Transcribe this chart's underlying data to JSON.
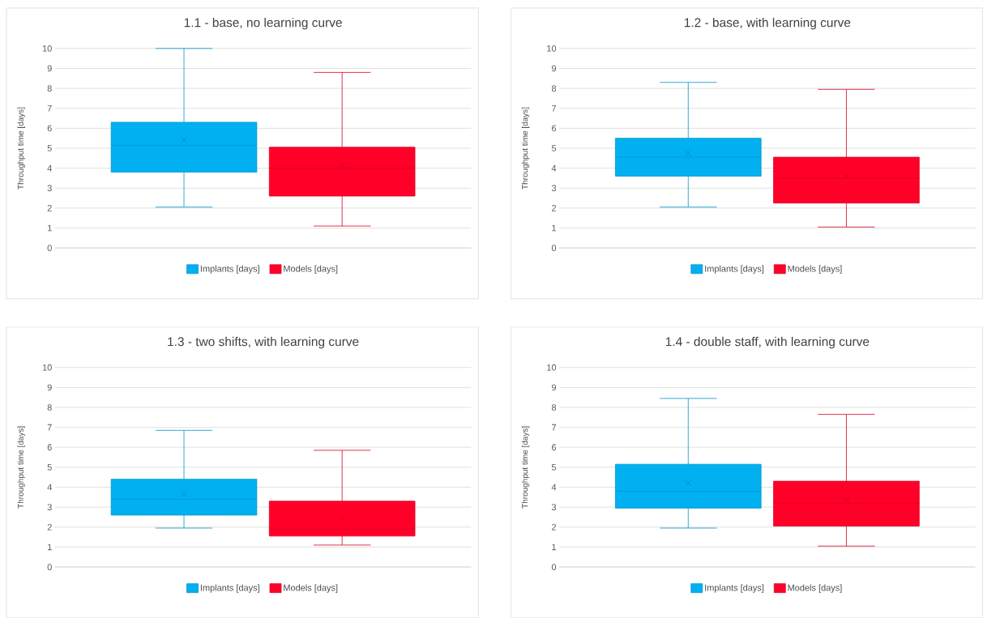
{
  "chart_data": [
    {
      "type": "box",
      "title": "1.1 - base, no learning curve",
      "ylabel": "Throughput time [days]",
      "categories": [
        null
      ],
      "ylim": [
        0,
        10
      ],
      "yticks": [
        0,
        1,
        2,
        3,
        4,
        5,
        6,
        7,
        8,
        9,
        10
      ],
      "grid": "y",
      "legend": "bottom",
      "series": [
        {
          "name": "Implants [days]",
          "color": "#00b0f0",
          "boxes": [
            {
              "low": 2.05,
              "q1": 3.8,
              "median": 5.15,
              "q3": 6.3,
              "high": 10,
              "mean": 5.4
            }
          ]
        },
        {
          "name": "Models [days]",
          "color": "#ff0029",
          "boxes": [
            {
              "low": 1.1,
              "q1": 2.6,
              "median": 4.0,
              "q3": 5.05,
              "high": 8.8,
              "mean": 4.15
            }
          ]
        }
      ]
    },
    {
      "type": "box",
      "title": "1.2 - base, with learning curve",
      "ylabel": "Throughput time [days]",
      "categories": [
        null
      ],
      "ylim": [
        0,
        10
      ],
      "yticks": [
        0,
        1,
        2,
        3,
        4,
        5,
        6,
        7,
        8,
        9,
        10
      ],
      "grid": "y",
      "legend": "bottom",
      "series": [
        {
          "name": "Implants [days]",
          "color": "#00b0f0",
          "boxes": [
            {
              "low": 2.05,
              "q1": 3.6,
              "median": 4.55,
              "q3": 5.5,
              "high": 8.3,
              "mean": 4.75
            }
          ]
        },
        {
          "name": "Models [days]",
          "color": "#ff0029",
          "boxes": [
            {
              "low": 1.05,
              "q1": 2.25,
              "median": 3.5,
              "q3": 4.55,
              "high": 7.95,
              "mean": 3.6
            }
          ]
        }
      ]
    },
    {
      "type": "box",
      "title": "1.3 - two shifts, with learning curve",
      "ylabel": "Throughput time [days]",
      "categories": [
        null
      ],
      "ylim": [
        0,
        10
      ],
      "yticks": [
        0,
        1,
        2,
        3,
        4,
        5,
        6,
        7,
        8,
        9,
        10
      ],
      "grid": "y",
      "legend": "bottom",
      "series": [
        {
          "name": "Implants [days]",
          "color": "#00b0f0",
          "boxes": [
            {
              "low": 1.95,
              "q1": 2.6,
              "median": 3.4,
              "q3": 4.4,
              "high": 6.85,
              "mean": 3.65
            }
          ]
        },
        {
          "name": "Models [days]",
          "color": "#ff0029",
          "boxes": [
            {
              "low": 1.1,
              "q1": 1.55,
              "median": 1.9,
              "q3": 3.3,
              "high": 5.85,
              "mean": 2.45
            }
          ]
        }
      ]
    },
    {
      "type": "box",
      "title": "1.4 - double staff, with learning curve",
      "ylabel": "Throughput time [days]",
      "categories": [
        null
      ],
      "ylim": [
        0,
        10
      ],
      "yticks": [
        0,
        1,
        2,
        3,
        4,
        5,
        6,
        7,
        8,
        9,
        10
      ],
      "grid": "y",
      "legend": "bottom",
      "series": [
        {
          "name": "Implants [days]",
          "color": "#00b0f0",
          "boxes": [
            {
              "low": 1.95,
              "q1": 2.95,
              "median": 3.8,
              "q3": 5.15,
              "high": 8.45,
              "mean": 4.2
            }
          ]
        },
        {
          "name": "Models [days]",
          "color": "#ff0029",
          "boxes": [
            {
              "low": 1.05,
              "q1": 2.05,
              "median": 3.2,
              "q3": 4.3,
              "high": 7.65,
              "mean": 3.35
            }
          ]
        }
      ]
    }
  ]
}
